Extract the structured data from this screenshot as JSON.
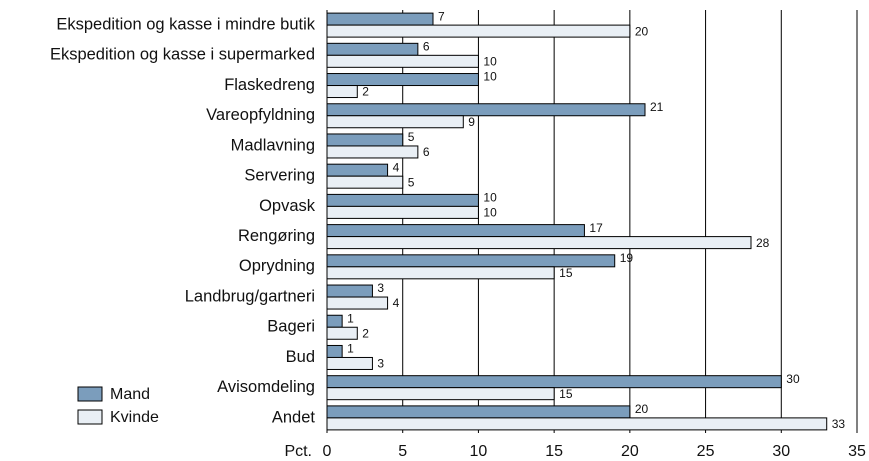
{
  "chart_data": {
    "type": "bar",
    "orientation": "horizontal",
    "categories": [
      "Ekspedition og kasse i mindre butik",
      "Ekspedition og kasse i supermarked",
      "Flaskedreng",
      "Vareopfyldning",
      "Madlavning",
      "Servering",
      "Opvask",
      "Rengøring",
      "Oprydning",
      "Landbrug/gartneri",
      "Bageri",
      "Bud",
      "Avisomdeling",
      "Andet"
    ],
    "series": [
      {
        "name": "Mand",
        "color": "#7b9dbc",
        "values": [
          7,
          6,
          10,
          21,
          5,
          4,
          10,
          17,
          19,
          3,
          1,
          1,
          30,
          20
        ]
      },
      {
        "name": "Kvinde",
        "color": "#e9eff5",
        "values": [
          20,
          10,
          2,
          9,
          6,
          5,
          10,
          28,
          15,
          4,
          2,
          3,
          15,
          33
        ]
      }
    ],
    "xlabel": "Pct.",
    "xlim": [
      0,
      35
    ],
    "xticks": [
      0,
      5,
      10,
      15,
      20,
      25,
      30,
      35
    ],
    "grid": true,
    "legend": "lower left"
  }
}
